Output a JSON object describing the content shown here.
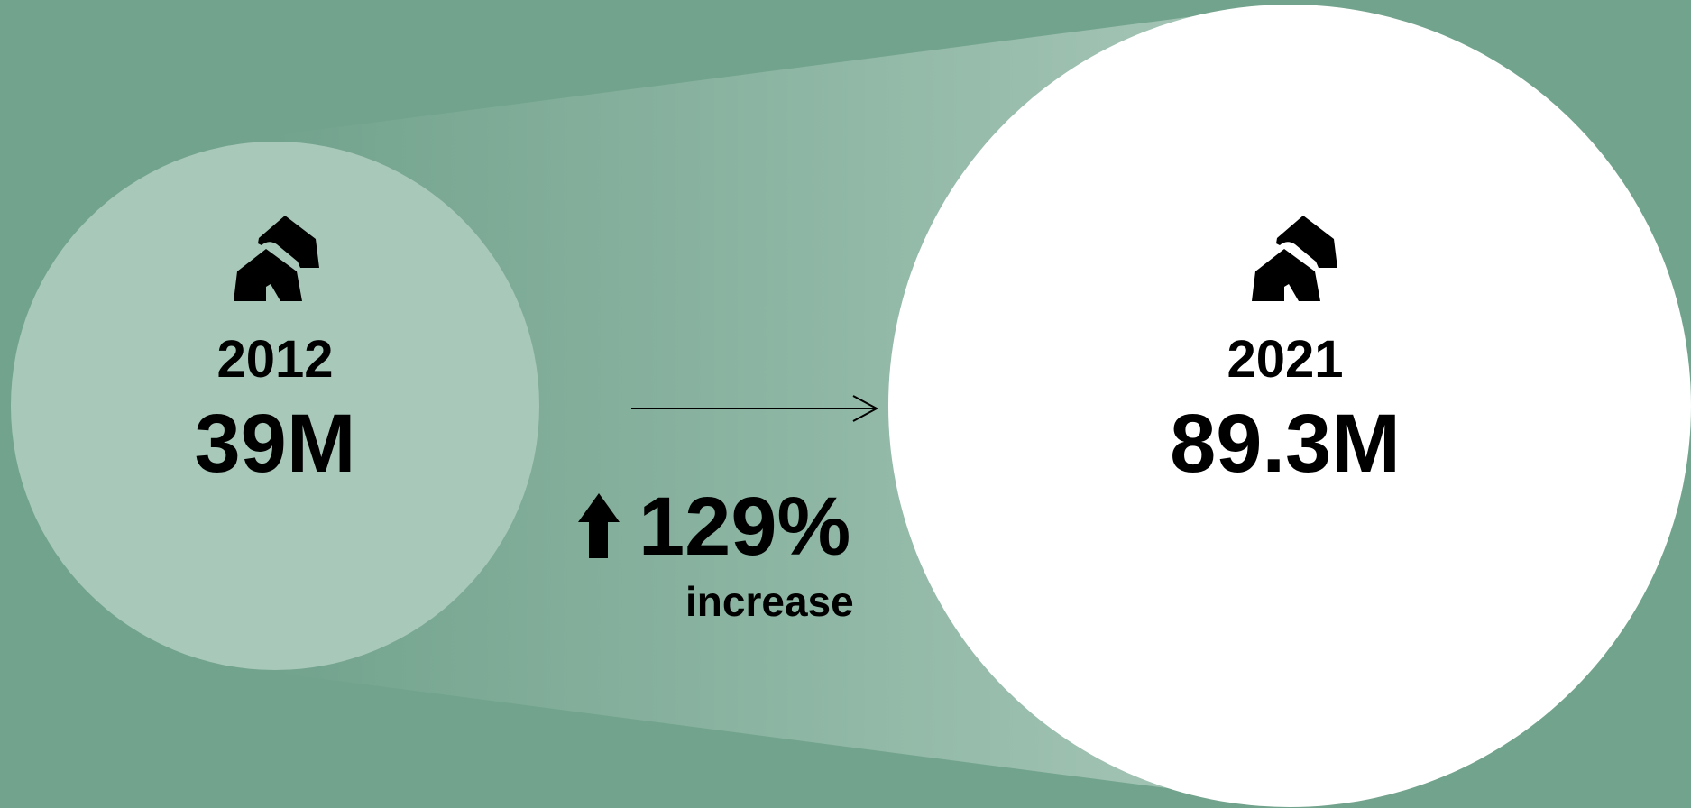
{
  "colors": {
    "background": "#72a38d",
    "start_circle": "#a8c8ba",
    "end_circle": "#ffffff",
    "text": "#000000"
  },
  "start": {
    "year": "2012",
    "value": "39M",
    "icon": "two-houses-icon"
  },
  "end": {
    "year": "2021",
    "value": "89.3M",
    "icon": "two-houses-icon"
  },
  "change": {
    "percent": "129%",
    "word": "increase",
    "direction_icon": "up-arrow-icon"
  }
}
